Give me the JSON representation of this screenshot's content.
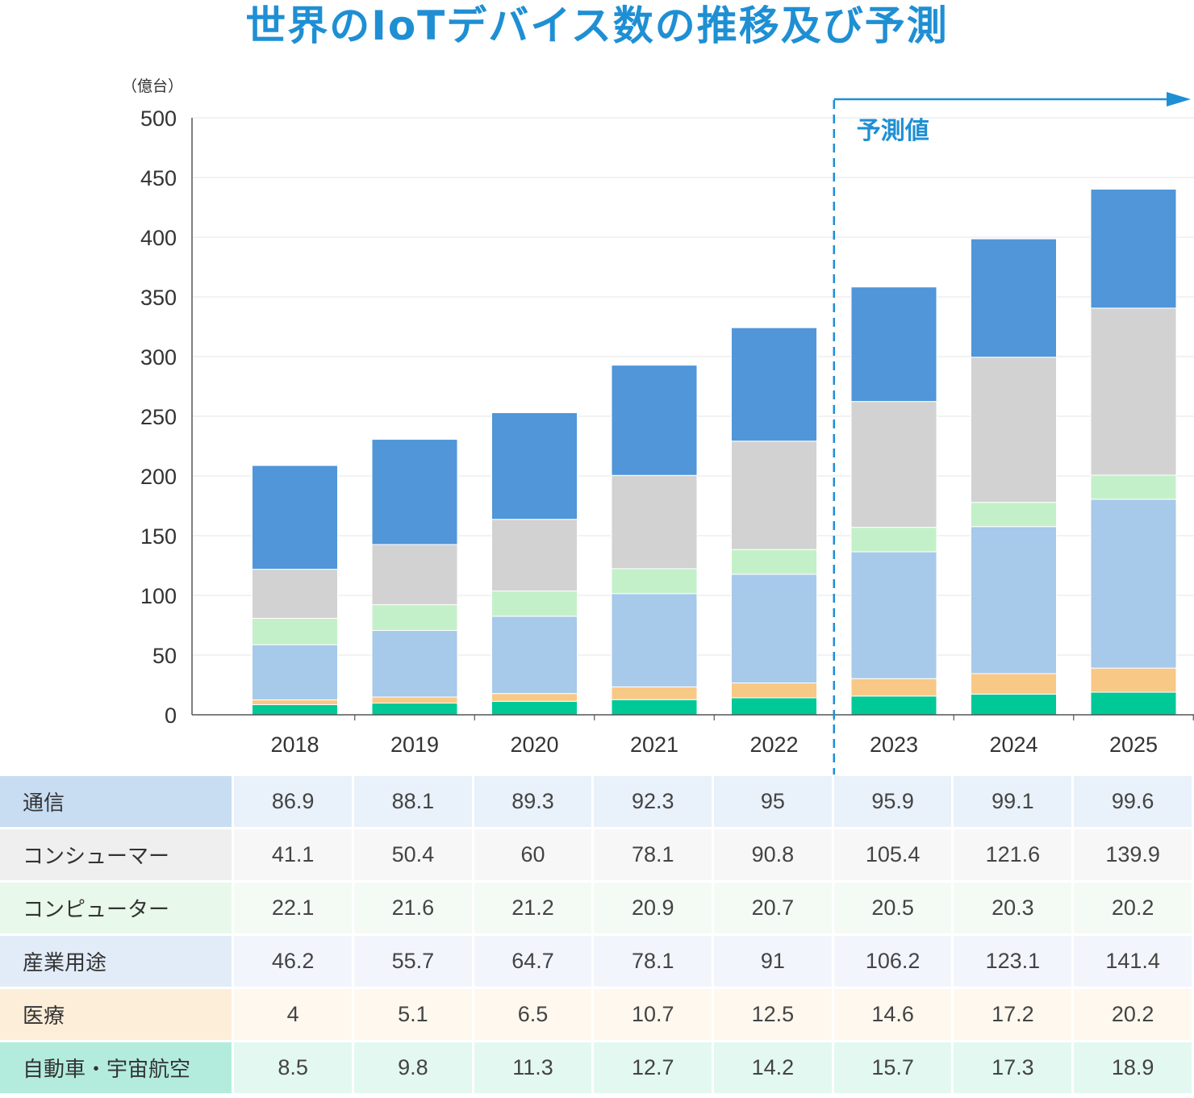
{
  "title": "世界のIoTデバイス数の推移及び予測",
  "forecast_label": "予測値",
  "colors": {
    "title": "#1f8fd4",
    "forecast": "#1f8fd4"
  },
  "chart_data": {
    "type": "bar",
    "stacked": true,
    "ylabel": "（億台）",
    "ylim": [
      0,
      500
    ],
    "yticks": [
      0,
      50,
      100,
      150,
      200,
      250,
      300,
      350,
      400,
      450,
      500
    ],
    "grid": true,
    "categories": [
      "2018",
      "2019",
      "2020",
      "2021",
      "2022",
      "2023",
      "2024",
      "2025"
    ],
    "forecast_from": "2023",
    "series": [
      {
        "name": "自動車・宇宙航空",
        "color": "#00c896",
        "label_bg": "#b3ecdc",
        "cell_bg": "#e3f8f1",
        "values": [
          8.5,
          9.8,
          11.3,
          12.7,
          14.2,
          15.7,
          17.3,
          18.9
        ]
      },
      {
        "name": "医療",
        "color": "#f8c887",
        "label_bg": "#fdeed9",
        "cell_bg": "#fef8ef",
        "values": [
          4,
          5.1,
          6.5,
          10.7,
          12.5,
          14.6,
          17.2,
          20.2
        ]
      },
      {
        "name": "産業用途",
        "color": "#a7c9ea",
        "label_bg": "#e2ecf8",
        "cell_bg": "#f2f6fc",
        "values": [
          46.2,
          55.7,
          64.7,
          78.1,
          91,
          106.2,
          123.1,
          141.4
        ]
      },
      {
        "name": "コンピューター",
        "color": "#c3f0c8",
        "label_bg": "#e8f8ea",
        "cell_bg": "#f4fbf5",
        "values": [
          22.1,
          21.6,
          21.2,
          20.9,
          20.7,
          20.5,
          20.3,
          20.2
        ]
      },
      {
        "name": "コンシューマー",
        "color": "#d2d2d2",
        "label_bg": "#efefef",
        "cell_bg": "#f7f7f7",
        "values": [
          41.1,
          50.4,
          60,
          78.1,
          90.8,
          105.4,
          121.6,
          139.9
        ]
      },
      {
        "name": "通信",
        "color": "#5096d8",
        "label_bg": "#c8ddf2",
        "cell_bg": "#e9f1fa",
        "values": [
          86.9,
          88.1,
          89.3,
          92.3,
          95,
          95.9,
          99.1,
          99.6
        ]
      }
    ],
    "table_order": [
      "通信",
      "コンシューマー",
      "コンピューター",
      "産業用途",
      "医療",
      "自動車・宇宙航空"
    ],
    "table_values": {
      "通信": [
        "86.9",
        "88.1",
        "89.3",
        "92.3",
        "95",
        "95.9",
        "99.1",
        "99.6"
      ],
      "コンシューマー": [
        "41.1",
        "50.4",
        "60",
        "78.1",
        "90.8",
        "105.4",
        "121.6",
        "139.9"
      ],
      "コンピューター": [
        "22.1",
        "21.6",
        "21.2",
        "20.9",
        "20.7",
        "20.5",
        "20.3",
        "20.2"
      ],
      "産業用途": [
        "46.2",
        "55.7",
        "64.7",
        "78.1",
        "91",
        "106.2",
        "123.1",
        "141.4"
      ],
      "医療": [
        "4",
        "5.1",
        "6.5",
        "10.7",
        "12.5",
        "14.6",
        "17.2",
        "20.2"
      ],
      "自動車・宇宙航空": [
        "8.5",
        "9.8",
        "11.3",
        "12.7",
        "14.2",
        "15.7",
        "17.3",
        "18.9"
      ]
    }
  }
}
